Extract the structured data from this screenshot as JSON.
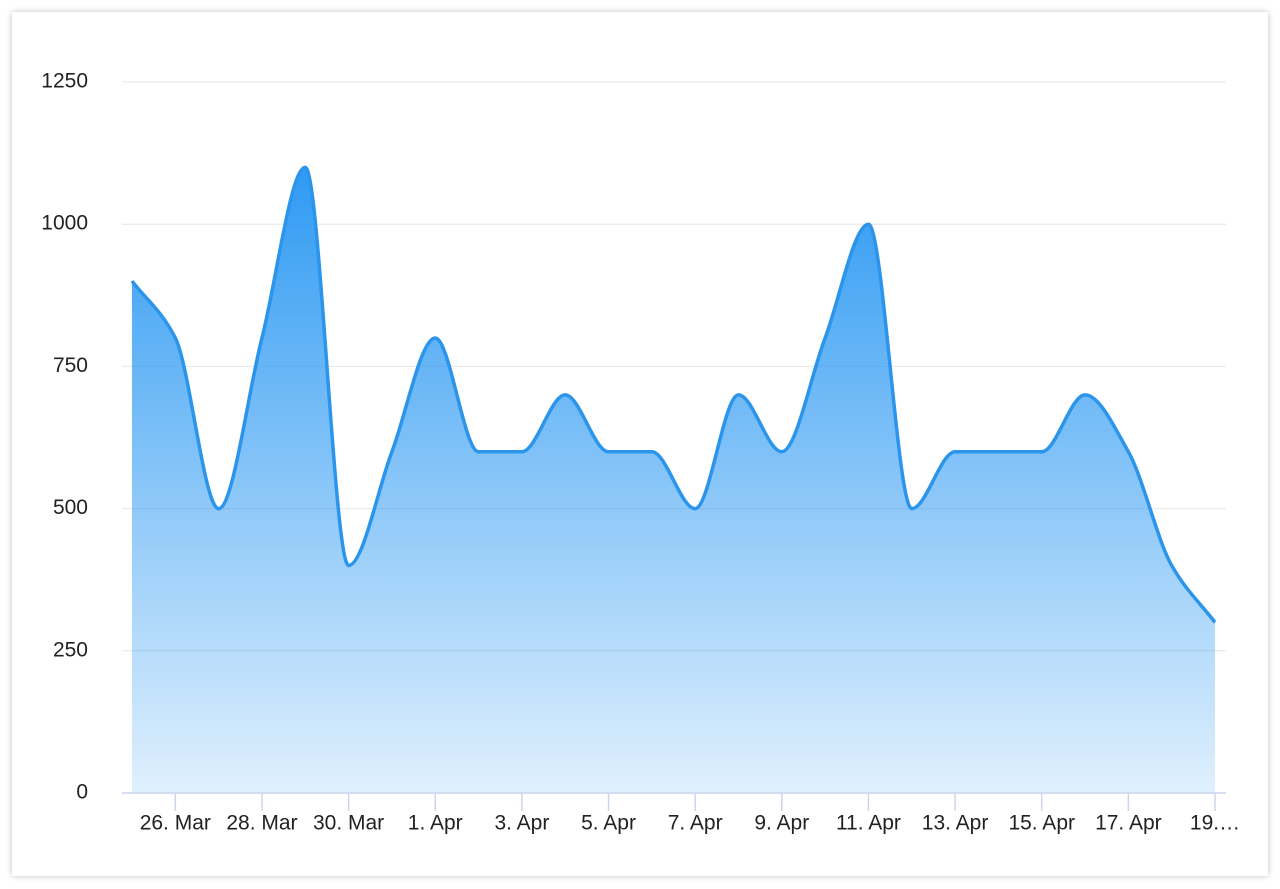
{
  "chart_data": {
    "type": "area",
    "categories": [
      null,
      "26. Mar",
      null,
      "28. Mar",
      null,
      "30. Mar",
      null,
      "1. Apr",
      null,
      "3. Apr",
      null,
      "5. Apr",
      null,
      "7. Apr",
      null,
      "9. Apr",
      null,
      "11. Apr",
      null,
      "13. Apr",
      null,
      "15. Apr",
      null,
      "17. Apr",
      null,
      "19.…"
    ],
    "values": [
      900,
      800,
      500,
      800,
      1100,
      400,
      600,
      800,
      600,
      600,
      700,
      600,
      600,
      500,
      700,
      600,
      800,
      1000,
      500,
      600,
      600,
      600,
      700,
      600,
      400,
      300
    ],
    "color": "#2b95ec",
    "ylim": [
      0,
      1250
    ],
    "yticks": [
      0,
      250,
      500,
      750,
      1000,
      1250
    ],
    "grid": true
  }
}
